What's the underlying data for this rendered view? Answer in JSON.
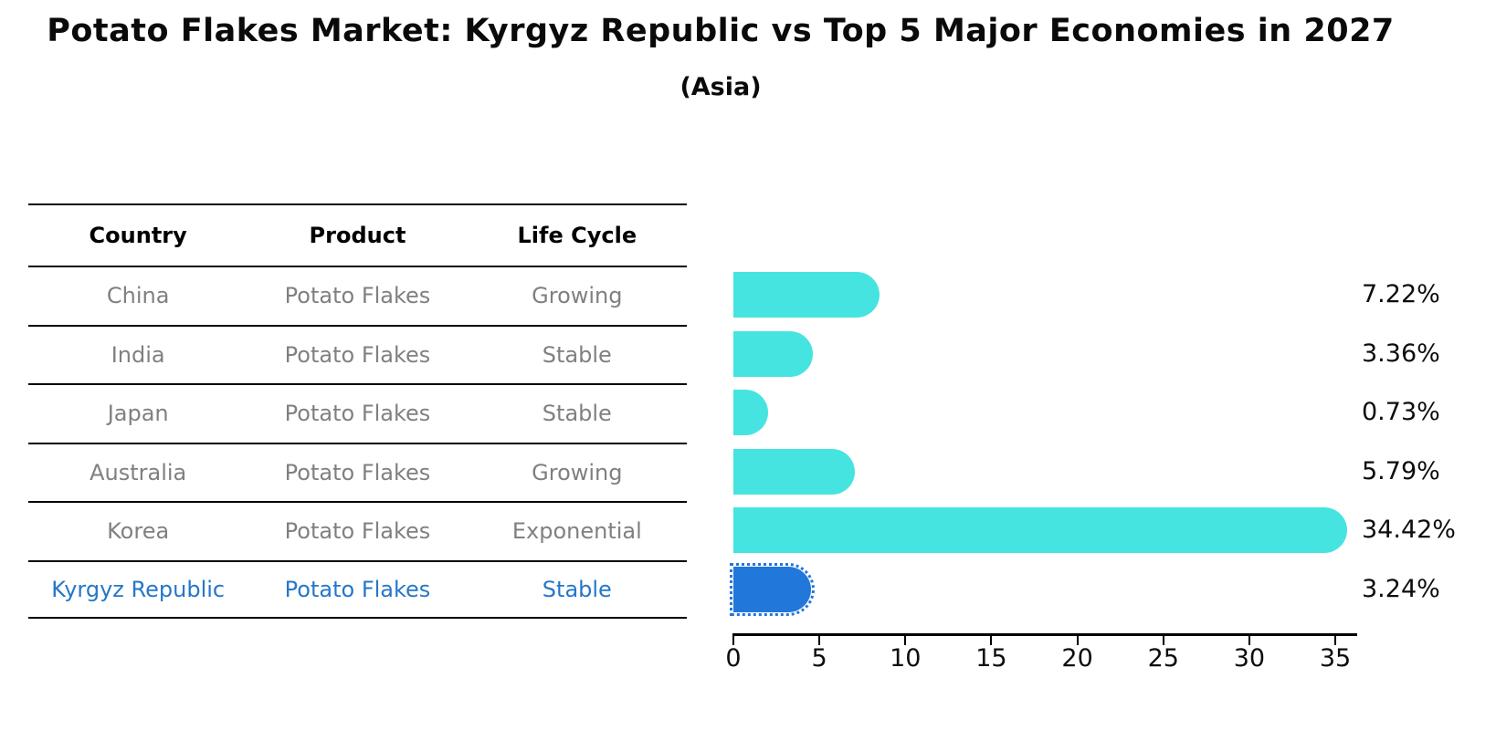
{
  "title": "Potato Flakes Market: Kyrgyz Republic vs Top 5 Major Economies in 2027",
  "subtitle": "(Asia)",
  "table": {
    "headers": [
      "Country",
      "Product",
      "Life Cycle"
    ],
    "rows": [
      {
        "country": "China",
        "product": "Potato Flakes",
        "life_cycle": "Growing"
      },
      {
        "country": "India",
        "product": "Potato Flakes",
        "life_cycle": "Stable"
      },
      {
        "country": "Japan",
        "product": "Potato Flakes",
        "life_cycle": "Stable"
      },
      {
        "country": "Australia",
        "product": "Potato Flakes",
        "life_cycle": "Growing"
      },
      {
        "country": "Korea",
        "product": "Potato Flakes",
        "life_cycle": "Exponential"
      },
      {
        "country": "Kyrgyz Republic",
        "product": "Potato Flakes",
        "life_cycle": "Stable"
      }
    ]
  },
  "chart_data": {
    "type": "bar",
    "orientation": "horizontal",
    "title": "Potato Flakes Market: Kyrgyz Republic vs Top 5 Major Economies in 2027",
    "subtitle": "(Asia)",
    "categories": [
      "China",
      "India",
      "Japan",
      "Australia",
      "Korea",
      "Kyrgyz Republic"
    ],
    "values": [
      7.22,
      3.36,
      0.73,
      5.79,
      34.42,
      3.24
    ],
    "value_labels": [
      "7.22%",
      "3.36%",
      "0.73%",
      "5.79%",
      "34.42%",
      "3.24%"
    ],
    "xlim": [
      0,
      36.3
    ],
    "xticks": [
      0,
      5,
      10,
      15,
      20,
      25,
      30,
      35
    ],
    "grid": false,
    "legend": false,
    "highlight_index": 5
  },
  "axis": {
    "tick_labels": [
      "0",
      "5",
      "10",
      "15",
      "20",
      "25",
      "30",
      "35"
    ]
  },
  "colors": {
    "bar_cyan": "#46E4E0",
    "bar_blue": "#2277DB",
    "highlight_text": "#2577C9",
    "row_text": "#808080",
    "text": "#0d0d0d"
  }
}
